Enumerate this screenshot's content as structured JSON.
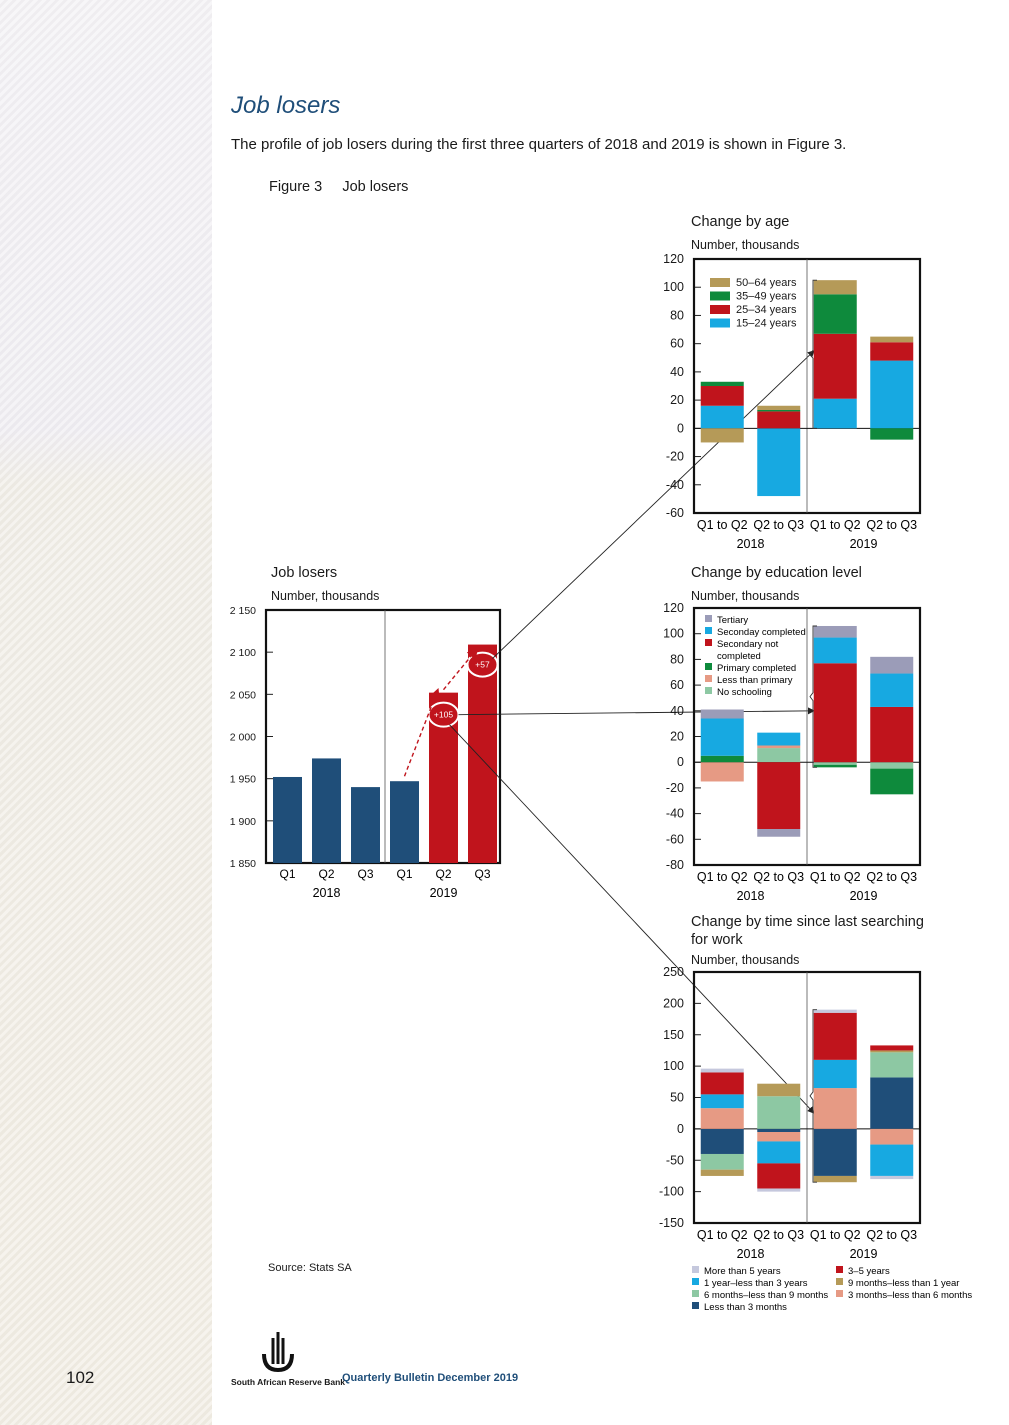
{
  "page": {
    "section_title": "Job losers",
    "intro": "The profile of job losers during the first three quarters of 2018 and 2019 is shown in Figure 3.",
    "figure_label": "Figure 3     Job losers",
    "source": "Source: Stats SA",
    "page_number": "102",
    "bank_name": "South African Reserve Bank",
    "publication": "Quarterly Bulletin December 2019"
  },
  "chart_data": [
    {
      "id": "job_losers",
      "type": "bar",
      "title": "Job losers",
      "unit": "Number, thousands",
      "ylim": [
        1850,
        2150
      ],
      "yticks": [
        1850,
        1900,
        1950,
        2000,
        2050,
        2100,
        2150
      ],
      "ytick_labels": [
        "1 850",
        "1 900",
        "1 950",
        "2 000",
        "2 050",
        "2 100",
        "2 150"
      ],
      "categories": [
        "Q1",
        "Q2",
        "Q3",
        "Q1",
        "Q2",
        "Q3"
      ],
      "groups": [
        "2018",
        "2019"
      ],
      "values": [
        1952,
        1974,
        1940,
        1947,
        2052,
        2109
      ],
      "colors": [
        "#1f4e79",
        "#1f4e79",
        "#1f4e79",
        "#1f4e79",
        "#c0141c",
        "#c0141c"
      ],
      "annotations": [
        "+105",
        "+57"
      ]
    },
    {
      "id": "age",
      "type": "bar",
      "stacked": true,
      "title": "Change by age",
      "unit": "Number, thousands",
      "ylim": [
        -60,
        120
      ],
      "yticks": [
        -60,
        -40,
        -20,
        0,
        20,
        40,
        60,
        80,
        100,
        120
      ],
      "categories": [
        "Q1 to Q2",
        "Q2 to Q3",
        "Q1 to Q2",
        "Q2 to Q3"
      ],
      "groups": [
        "2018",
        "2019"
      ],
      "legend_position": "top-left",
      "series": [
        {
          "name": "15–24 years",
          "color": "#17a9e1",
          "values": [
            16,
            -48,
            21,
            48
          ]
        },
        {
          "name": "25–34 years",
          "color": "#c0141c",
          "values": [
            14,
            12,
            46,
            13
          ]
        },
        {
          "name": "35–49 years",
          "color": "#0e8a3c",
          "values": [
            3,
            1,
            28,
            -8
          ]
        },
        {
          "name": "50–64 years",
          "color": "#b59a58",
          "values": [
            -10,
            3,
            10,
            4
          ]
        }
      ],
      "legend_order": [
        3,
        2,
        1,
        0
      ]
    },
    {
      "id": "education",
      "type": "bar",
      "stacked": true,
      "title": "Change by education level",
      "unit": "Number, thousands",
      "ylim": [
        -80,
        120
      ],
      "yticks": [
        -80,
        -60,
        -40,
        -20,
        0,
        20,
        40,
        60,
        80,
        100,
        120
      ],
      "categories": [
        "Q1 to Q2",
        "Q2 to Q3",
        "Q1 to Q2",
        "Q2 to Q3"
      ],
      "groups": [
        "2018",
        "2019"
      ],
      "legend_position": "top-left",
      "series": [
        {
          "name": "No schooling",
          "color": "#8dc8a3",
          "values": [
            0,
            11,
            -2,
            -5
          ]
        },
        {
          "name": "Less than primary",
          "color": "#e69a84",
          "values": [
            -15,
            2,
            0,
            0
          ]
        },
        {
          "name": "Primary completed",
          "color": "#0e8a3c",
          "values": [
            5,
            0,
            -2,
            -20
          ]
        },
        {
          "name": "Secondary not completed",
          "color": "#c0141c",
          "values": [
            0,
            -52,
            77,
            43
          ]
        },
        {
          "name": "Seconday completed",
          "color": "#17a9e1",
          "values": [
            29,
            10,
            20,
            26
          ]
        },
        {
          "name": "Tertiary",
          "color": "#9b9cb8",
          "values": [
            7,
            -6,
            9,
            13
          ]
        }
      ],
      "legend_order": [
        5,
        4,
        3,
        2,
        1,
        0
      ]
    },
    {
      "id": "time_searching",
      "type": "bar",
      "stacked": true,
      "title": "Change by time since last searching for work",
      "title_lines": [
        "Change by time since last searching",
        "for work"
      ],
      "unit": "Number, thousands",
      "ylim": [
        -150,
        250
      ],
      "yticks": [
        -150,
        -100,
        -50,
        0,
        50,
        100,
        150,
        200,
        250
      ],
      "categories": [
        "Q1 to Q2",
        "Q2 to Q3",
        "Q1 to Q2",
        "Q2 to Q3"
      ],
      "groups": [
        "2018",
        "2019"
      ],
      "legend_position": "bottom",
      "series": [
        {
          "name": "Less than 3 months",
          "color": "#1f4e79",
          "values": [
            -40,
            -5,
            -75,
            82
          ]
        },
        {
          "name": "3 months–less than 6 months",
          "color": "#e69a84",
          "values": [
            33,
            -15,
            65,
            -25
          ]
        },
        {
          "name": "6 months–less than 9 months",
          "color": "#8dc8a3",
          "values": [
            -25,
            52,
            0,
            40
          ]
        },
        {
          "name": "9 months–less than 1 year",
          "color": "#b59a58",
          "values": [
            -10,
            20,
            -10,
            3
          ]
        },
        {
          "name": "1 year–less than 3 years",
          "color": "#17a9e1",
          "values": [
            22,
            -35,
            45,
            -50
          ]
        },
        {
          "name": "3–5 years",
          "color": "#c0141c",
          "values": [
            35,
            -40,
            75,
            8
          ]
        },
        {
          "name": "More than 5 years",
          "color": "#c5c8dd",
          "values": [
            6,
            -5,
            5,
            -5
          ]
        }
      ],
      "legend_order": [
        6,
        5,
        4,
        3,
        2,
        1,
        0
      ]
    }
  ]
}
